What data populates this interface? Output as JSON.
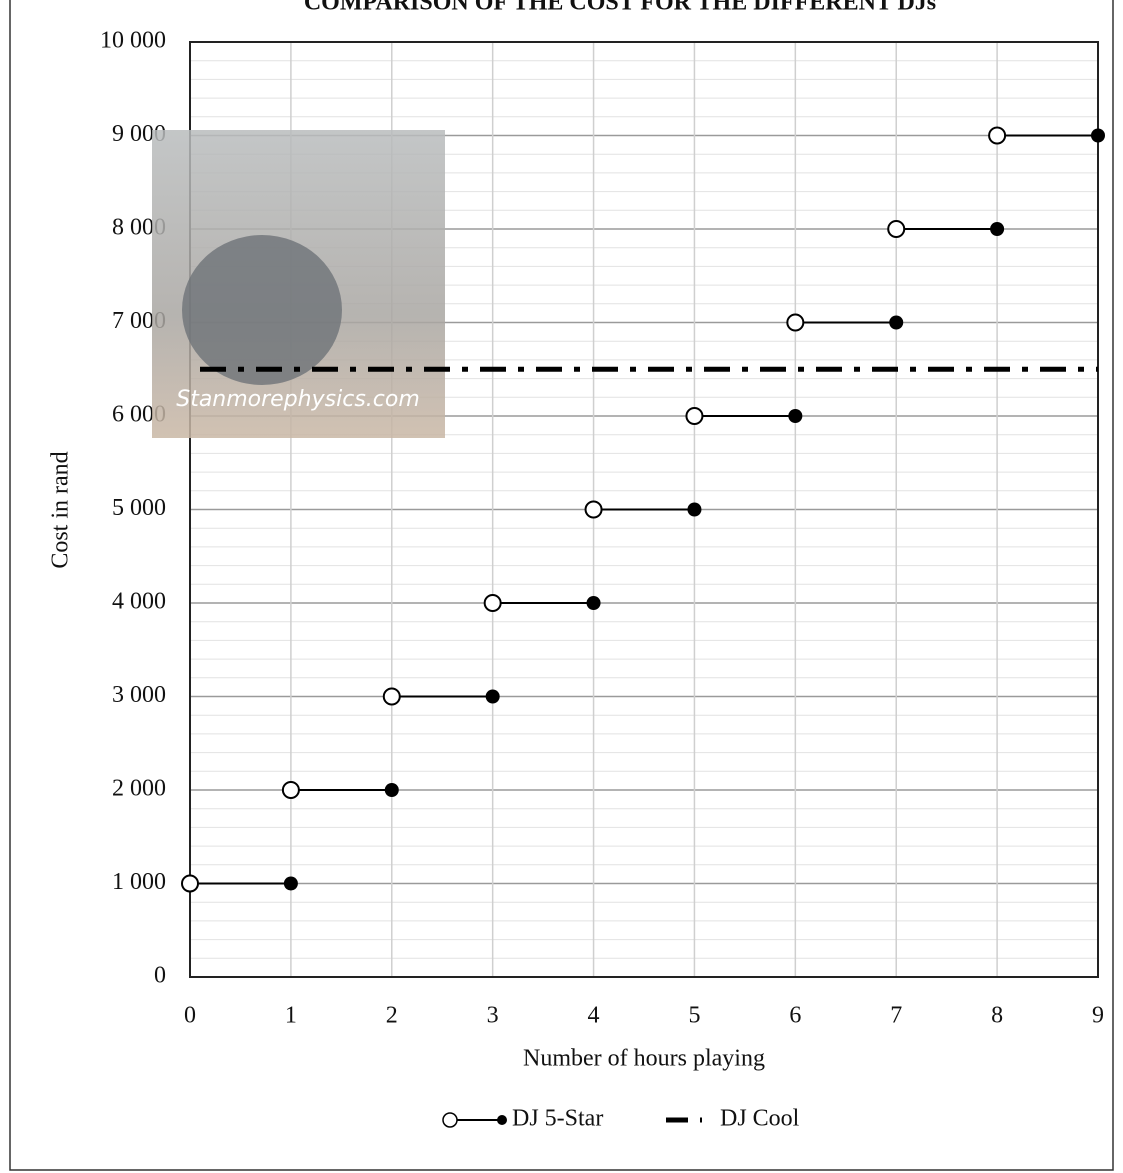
{
  "chart_data": {
    "type": "step",
    "title": "COMPARISON OF THE COST FOR THE DIFFERENT DJs",
    "x_label": "Number of hours playing",
    "y_label": "Cost in rand",
    "watermark": "Stanmorephysics.com",
    "xlim": [
      0,
      9
    ],
    "ylim": [
      0,
      10000
    ],
    "xticks": [
      0,
      1,
      2,
      3,
      4,
      5,
      6,
      7,
      8,
      9
    ],
    "yticks": [
      0,
      {
        "value": 1000,
        "label": "1 000"
      },
      {
        "value": 2000,
        "label": "2 000"
      },
      {
        "value": 3000,
        "label": "3 000"
      },
      {
        "value": 4000,
        "label": "4 000"
      },
      {
        "value": 5000,
        "label": "5 000"
      },
      {
        "value": 6000,
        "label": "6 000"
      },
      {
        "value": 7000,
        "label": "7 000"
      },
      {
        "value": 8000,
        "label": "8 000"
      },
      {
        "value": 9000,
        "label": "9 000"
      },
      {
        "value": 10000,
        "label": "10 000"
      }
    ],
    "grid": true,
    "minor_grid": true,
    "legend": "bottom",
    "series": [
      {
        "name": "DJ 5-Star",
        "color": "#000000",
        "style": "step",
        "x_start": [
          0,
          1,
          2,
          3,
          4,
          5,
          6,
          7,
          8
        ],
        "x_end": [
          1,
          2,
          3,
          4,
          5,
          6,
          7,
          8,
          9
        ],
        "values": [
          1000,
          2000,
          3000,
          4000,
          5000,
          6000,
          7000,
          8000,
          9000
        ]
      },
      {
        "name": "DJ Cool",
        "color": "#000000",
        "style": "dash-dot",
        "x": [
          0,
          9
        ],
        "values": [
          6500,
          6500
        ]
      }
    ]
  }
}
